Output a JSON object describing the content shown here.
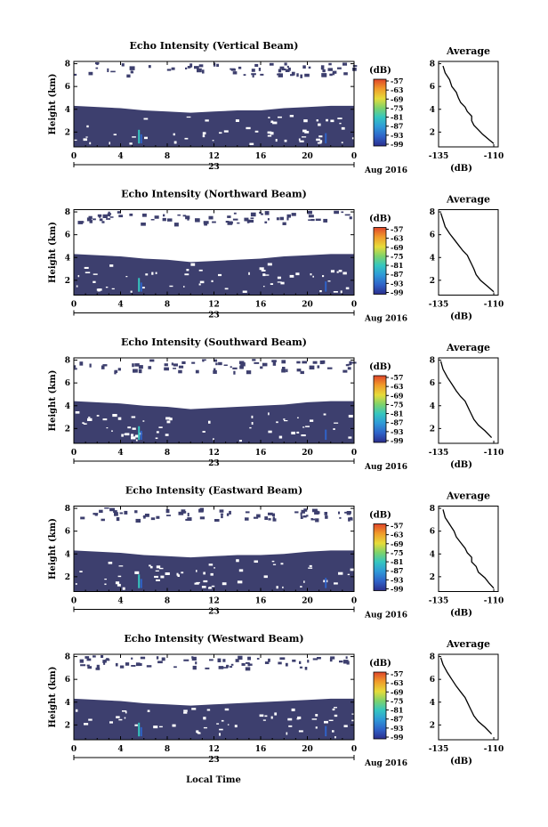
{
  "figure": {
    "xlabel": "Local Time",
    "date_label": "Aug 2016",
    "x_ticks": [
      "0",
      "4",
      "8",
      "12",
      "16",
      "20",
      "0"
    ],
    "day_label": "23",
    "y_ticks": [
      "2",
      "4",
      "6",
      "8"
    ],
    "ylabel": "Height (km)",
    "colorbar_unit": "(dB)",
    "colorbar_ticks": [
      "-57",
      "-63",
      "-69",
      "-75",
      "-81",
      "-87",
      "-93",
      "-99"
    ],
    "average_title": "Average",
    "average_xticks": [
      "-135",
      "-110"
    ],
    "average_xlabel": "(dB)",
    "average_yticks": [
      "2",
      "4",
      "6",
      "8"
    ]
  },
  "colors": {
    "background_echo": "#3d3f6e",
    "colormap": [
      "#2b2e8c",
      "#2f62c8",
      "#2f9ad8",
      "#35c6c0",
      "#7ed36b",
      "#e6dc3a",
      "#f09a2a",
      "#e0452a"
    ]
  },
  "chart_data": [
    {
      "type": "heatmap",
      "title": "Echo Intensity (Vertical Beam)",
      "xlabel": "",
      "ylabel": "Height (km)",
      "xlim": [
        0,
        24
      ],
      "ylim": [
        0.7,
        8.2
      ],
      "mixed_layer_top_km": [
        [
          0,
          4.3
        ],
        [
          4,
          4.1
        ],
        [
          6,
          3.9
        ],
        [
          8,
          3.8
        ],
        [
          10,
          3.7
        ],
        [
          12,
          3.8
        ],
        [
          14,
          3.9
        ],
        [
          16,
          3.9
        ],
        [
          18,
          4.1
        ],
        [
          20,
          4.2
        ],
        [
          22,
          4.3
        ],
        [
          24,
          4.3
        ]
      ],
      "average": {
        "title": "Average",
        "xlabel": "(dB)",
        "xlim": [
          -135,
          -108
        ],
        "profile": [
          [
            -133,
            7.8
          ],
          [
            -132,
            7.2
          ],
          [
            -130,
            6.6
          ],
          [
            -129,
            6.0
          ],
          [
            -127,
            5.5
          ],
          [
            -126,
            5.0
          ],
          [
            -125,
            4.6
          ],
          [
            -123,
            4.2
          ],
          [
            -122,
            3.8
          ],
          [
            -120,
            3.4
          ],
          [
            -120,
            3.0
          ],
          [
            -119,
            2.6
          ],
          [
            -117,
            2.2
          ],
          [
            -115,
            1.8
          ],
          [
            -112,
            1.3
          ],
          [
            -110,
            1.0
          ]
        ]
      }
    },
    {
      "type": "heatmap",
      "title": "Echo Intensity (Northward Beam)",
      "xlabel": "",
      "ylabel": "Height (km)",
      "xlim": [
        0,
        24
      ],
      "ylim": [
        0.7,
        8.2
      ],
      "mixed_layer_top_km": [
        [
          0,
          4.3
        ],
        [
          4,
          4.1
        ],
        [
          6,
          3.9
        ],
        [
          8,
          3.8
        ],
        [
          10,
          3.6
        ],
        [
          12,
          3.7
        ],
        [
          14,
          3.8
        ],
        [
          16,
          3.9
        ],
        [
          18,
          4.1
        ],
        [
          20,
          4.2
        ],
        [
          22,
          4.3
        ],
        [
          24,
          4.3
        ]
      ],
      "average": {
        "title": "Average",
        "xlabel": "(dB)",
        "xlim": [
          -135,
          -108
        ],
        "profile": [
          [
            -134,
            7.9
          ],
          [
            -133,
            7.3
          ],
          [
            -132,
            6.7
          ],
          [
            -130,
            6.1
          ],
          [
            -128,
            5.6
          ],
          [
            -126,
            5.1
          ],
          [
            -124,
            4.6
          ],
          [
            -122,
            4.2
          ],
          [
            -121,
            3.8
          ],
          [
            -120,
            3.4
          ],
          [
            -119,
            3.0
          ],
          [
            -118,
            2.5
          ],
          [
            -116,
            2.0
          ],
          [
            -113,
            1.5
          ],
          [
            -110,
            1.0
          ]
        ]
      }
    },
    {
      "type": "heatmap",
      "title": "Echo Intensity (Southward Beam)",
      "xlabel": "",
      "ylabel": "Height (km)",
      "xlim": [
        0,
        24
      ],
      "ylim": [
        0.7,
        8.2
      ],
      "mixed_layer_top_km": [
        [
          0,
          4.4
        ],
        [
          4,
          4.2
        ],
        [
          6,
          4.0
        ],
        [
          8,
          3.9
        ],
        [
          10,
          3.7
        ],
        [
          12,
          3.8
        ],
        [
          14,
          3.9
        ],
        [
          16,
          4.0
        ],
        [
          18,
          4.1
        ],
        [
          20,
          4.3
        ],
        [
          22,
          4.4
        ],
        [
          24,
          4.4
        ]
      ],
      "average": {
        "title": "Average",
        "xlabel": "(dB)",
        "xlim": [
          -135,
          -108
        ],
        "profile": [
          [
            -134,
            7.9
          ],
          [
            -133,
            7.2
          ],
          [
            -131,
            6.5
          ],
          [
            -129,
            5.9
          ],
          [
            -127,
            5.3
          ],
          [
            -125,
            4.8
          ],
          [
            -123,
            4.4
          ],
          [
            -122,
            4.0
          ],
          [
            -121,
            3.6
          ],
          [
            -120,
            3.2
          ],
          [
            -119,
            2.8
          ],
          [
            -117,
            2.3
          ],
          [
            -114,
            1.8
          ],
          [
            -111,
            1.2
          ]
        ]
      }
    },
    {
      "type": "heatmap",
      "title": "Echo Intensity (Eastward Beam)",
      "xlabel": "",
      "ylabel": "Height (km)",
      "xlim": [
        0,
        24
      ],
      "ylim": [
        0.7,
        8.2
      ],
      "mixed_layer_top_km": [
        [
          0,
          4.3
        ],
        [
          4,
          4.1
        ],
        [
          6,
          3.9
        ],
        [
          8,
          3.8
        ],
        [
          10,
          3.7
        ],
        [
          12,
          3.8
        ],
        [
          14,
          3.9
        ],
        [
          16,
          3.9
        ],
        [
          18,
          4.0
        ],
        [
          20,
          4.2
        ],
        [
          22,
          4.3
        ],
        [
          24,
          4.3
        ]
      ],
      "average": {
        "title": "Average",
        "xlabel": "(dB)",
        "xlim": [
          -135,
          -108
        ],
        "profile": [
          [
            -133,
            7.9
          ],
          [
            -132,
            7.2
          ],
          [
            -130,
            6.6
          ],
          [
            -128,
            6.0
          ],
          [
            -127,
            5.5
          ],
          [
            -125,
            5.0
          ],
          [
            -123,
            4.5
          ],
          [
            -122,
            4.1
          ],
          [
            -120,
            3.7
          ],
          [
            -120,
            3.3
          ],
          [
            -118,
            2.9
          ],
          [
            -117,
            2.4
          ],
          [
            -114,
            1.9
          ],
          [
            -112,
            1.4
          ],
          [
            -110,
            1.0
          ]
        ]
      }
    },
    {
      "type": "heatmap",
      "title": "Echo Intensity (Westward Beam)",
      "xlabel": "Local Time",
      "ylabel": "Height (km)",
      "xlim": [
        0,
        24
      ],
      "ylim": [
        0.7,
        8.2
      ],
      "mixed_layer_top_km": [
        [
          0,
          4.3
        ],
        [
          4,
          4.1
        ],
        [
          6,
          3.9
        ],
        [
          8,
          3.8
        ],
        [
          10,
          3.7
        ],
        [
          12,
          3.8
        ],
        [
          14,
          3.9
        ],
        [
          16,
          4.0
        ],
        [
          18,
          4.1
        ],
        [
          20,
          4.2
        ],
        [
          22,
          4.3
        ],
        [
          24,
          4.3
        ]
      ],
      "average": {
        "title": "Average",
        "xlabel": "(dB)",
        "xlim": [
          -135,
          -108
        ],
        "profile": [
          [
            -134,
            7.9
          ],
          [
            -133,
            7.3
          ],
          [
            -131,
            6.6
          ],
          [
            -129,
            6.0
          ],
          [
            -127,
            5.4
          ],
          [
            -125,
            4.9
          ],
          [
            -123,
            4.4
          ],
          [
            -122,
            4.0
          ],
          [
            -121,
            3.6
          ],
          [
            -120,
            3.2
          ],
          [
            -119,
            2.8
          ],
          [
            -117,
            2.3
          ],
          [
            -114,
            1.8
          ],
          [
            -111,
            1.2
          ]
        ]
      }
    }
  ]
}
